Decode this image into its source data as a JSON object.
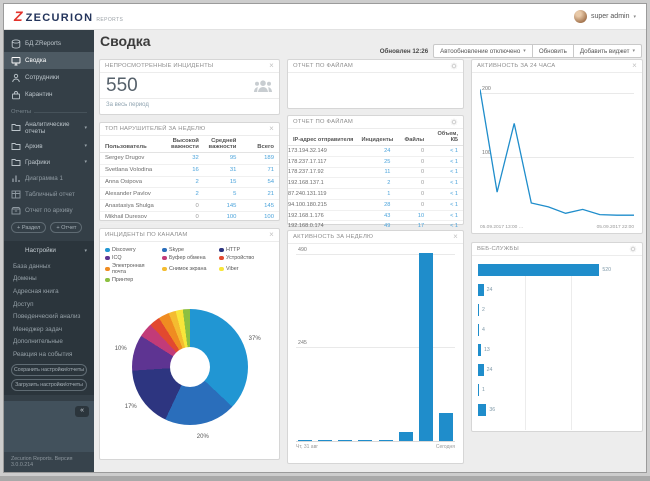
{
  "topbar": {
    "brand": "ZECURION",
    "brand_sub": "REPORTS",
    "user": "super admin"
  },
  "sidebar": {
    "top_items": [
      {
        "label": "БД ZReports"
      },
      {
        "label": "Сводка"
      },
      {
        "label": "Сотрудники"
      },
      {
        "label": "Карантин"
      }
    ],
    "reports_section": "Отчеты",
    "folders": [
      "Аналитические отчеты",
      "Архив",
      "Графики"
    ],
    "report_items": [
      {
        "label": "Диаграмма 1"
      },
      {
        "label": "Табличный отчет"
      },
      {
        "label": "Отчет по архиву"
      }
    ],
    "add_section": "+ Раздел",
    "add_report": "+ Отчет",
    "settings_label": "Настройки",
    "settings_items": [
      "База данных",
      "Домены",
      "Адресная книга",
      "Доступ",
      "Поведенческий анализ",
      "Менеджер задач",
      "Дополнительные",
      "Реакция на события"
    ],
    "save_button": "Сохранить настройки/отчеты",
    "load_button": "Загрузить настройки/отчеты",
    "collapse": "«",
    "version": "Zecurion Reports. Версия 3.0.0.214"
  },
  "main": {
    "title": "Сводка",
    "updated": "Обновлен 12:26",
    "autorefresh": "Автообновление отключено",
    "refresh": "Обновить",
    "add_widget": "Добавить виджет"
  },
  "widgets": {
    "unviewed": {
      "title": "НЕПРОСМОТРЕННЫЕ ИНЦИДЕНТЫ",
      "value": "550",
      "period": "За весь период"
    },
    "violators": {
      "title": "ТОП НАРУШИТЕЛЕЙ ЗА НЕДЕЛЮ",
      "columns": [
        "Пользователь",
        "Высокой важности",
        "Средней важности",
        "Всего"
      ],
      "rows": [
        [
          "Sergey Drugov",
          "32",
          "95",
          "189"
        ],
        [
          "Svetlana Volodina",
          "16",
          "31",
          "71"
        ],
        [
          "Anna Osipova",
          "2",
          "15",
          "54"
        ],
        [
          "Alexander Pavlov",
          "2",
          "5",
          "21"
        ],
        [
          "Anastasiya Shulga",
          "0",
          "145",
          "145"
        ],
        [
          "Mikhail Duresov",
          "0",
          "100",
          "100"
        ]
      ]
    },
    "files_empty": {
      "title": "ОТЧЕТ ПО ФАЙЛАМ"
    },
    "files": {
      "title": "ОТЧЕТ ПО ФАЙЛАМ",
      "columns": [
        "IP-адрес отправителя",
        "Инциденты",
        "Файлы",
        "Объем, КБ"
      ],
      "rows": [
        [
          "173.194.32.149",
          "24",
          "0",
          "< 1"
        ],
        [
          "178.237.17.117",
          "25",
          "0",
          "< 1"
        ],
        [
          "178.237.17.92",
          "11",
          "0",
          "< 1"
        ],
        [
          "192.168.137.1",
          "2",
          "0",
          "< 1"
        ],
        [
          "87.240.131.119",
          "1",
          "0",
          "< 1"
        ],
        [
          "94.100.180.215",
          "28",
          "0",
          "< 1"
        ],
        [
          "192.168.1.176",
          "43",
          "10",
          "< 1"
        ],
        [
          "192.168.0.174",
          "49",
          "17",
          "< 1"
        ],
        [
          "192.168.0.139",
          "31",
          "21",
          "< 1"
        ]
      ]
    },
    "channels": {
      "title": "ИНЦИДЕНТЫ ПО КАНАЛАМ"
    },
    "week": {
      "title": "АКТИВНОСТЬ ЗА НЕДЕЛЮ"
    },
    "day": {
      "title": "АКТИВНОСТЬ ЗА 24 ЧАСА"
    },
    "webs": {
      "title": "ВЕБ-СЛУЖБЫ"
    }
  },
  "colors": {
    "accent_blue": "#1f8dcb",
    "link_blue": "#4aa3db",
    "brand_red": "#e3322b"
  },
  "chart_data": [
    {
      "type": "pie",
      "title": "ИНЦИДЕНТЫ ПО КАНАЛАМ",
      "donut": true,
      "legend_position": "top",
      "show_label_min_pct": 10,
      "segments": [
        {
          "label": "Discovery",
          "pct": 37,
          "color": "#2196d3"
        },
        {
          "label": "Skype",
          "pct": 20,
          "color": "#2a6ebb"
        },
        {
          "label": "HTTP",
          "pct": 17,
          "color": "#2d3580"
        },
        {
          "label": "ICQ",
          "pct": 10,
          "color": "#5e3492"
        },
        {
          "label": "Буфер обмена",
          "pct": 4,
          "color": "#c23b78"
        },
        {
          "label": "Устройство",
          "pct": 3,
          "color": "#e2492f"
        },
        {
          "label": "Электронная почта",
          "pct": 3,
          "color": "#ef8c21"
        },
        {
          "label": "Снимок экрана",
          "pct": 2,
          "color": "#f4bc30"
        },
        {
          "label": "Viber",
          "pct": 2,
          "color": "#f8e63a"
        },
        {
          "label": "Принтер",
          "pct": 2,
          "color": "#8cc041"
        }
      ]
    },
    {
      "type": "bar",
      "title": "АКТИВНОСТЬ ЗА НЕДЕЛЮ",
      "values": [
        2,
        2,
        2,
        2,
        2,
        25,
        496,
        75
      ],
      "ylim": [
        0,
        500
      ],
      "gridlines": [
        245,
        490
      ],
      "x_left_label": "Чт, 31 авг",
      "x_right_label": "Сегодня",
      "color": "#1f8dcb"
    },
    {
      "type": "line",
      "title": "АКТИВНОСТЬ ЗА 24 ЧАСА",
      "y": [
        205,
        45,
        152,
        28,
        22,
        12,
        18,
        10,
        9,
        9
      ],
      "ylim": [
        0,
        215
      ],
      "gridlines": [
        100,
        200
      ],
      "x_left_label": "05.09.2017 13:00 …",
      "x_right_label": "05.09.2017 22:00",
      "color": "#1f8dcb"
    },
    {
      "type": "bar",
      "orientation": "horizontal",
      "title": "ВЕБ-СЛУЖБЫ",
      "values": [
        520,
        24,
        2,
        4,
        13,
        24,
        1,
        36
      ],
      "xlim": [
        0,
        600
      ],
      "gridlines": [
        200,
        400
      ],
      "color": "#1f8dcb"
    }
  ]
}
